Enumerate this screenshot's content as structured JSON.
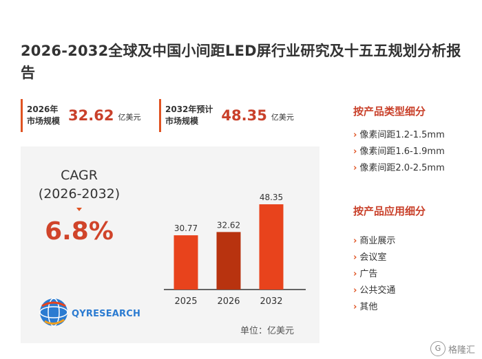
{
  "title": "2026-2032全球及中国小间距LED屏行业研究及十五五规划分析报告",
  "stats": [
    {
      "label_line1": "2026年",
      "label_line2": "市场规模",
      "value": "32.62",
      "unit": "亿美元"
    },
    {
      "label_line1": "2032年预计",
      "label_line2": "市场规模",
      "value": "48.35",
      "unit": "亿美元"
    }
  ],
  "cagr": {
    "label_line1": "CAGR",
    "label_line2": "(2026-2032)",
    "value": "6.8%"
  },
  "logo": {
    "text": "QYRESEARCH"
  },
  "chart_data": {
    "type": "bar",
    "categories": [
      "2025",
      "2026",
      "2032"
    ],
    "values": [
      30.77,
      32.62,
      48.35
    ],
    "data_labels": [
      "30.77",
      "32.62",
      "48.35"
    ],
    "bar_colors": [
      "#e8431c",
      "#b8330f",
      "#e8431c"
    ],
    "unit": "单位：亿美元",
    "ylim": [
      0,
      55
    ],
    "grid": false,
    "legend": "none"
  },
  "sidebar": {
    "sections": [
      {
        "heading": "按产品类型细分",
        "items": [
          "像素间距1.2-1.5mm",
          "像素间距1.6-1.9mm",
          "像素间距2.0-2.5mm"
        ]
      },
      {
        "heading": "按产品应用细分",
        "items": [
          "商业展示",
          "会议室",
          "广告",
          "公共交通",
          "其他"
        ]
      }
    ]
  },
  "watermark": {
    "glyph": "G",
    "text": "格隆汇"
  },
  "colors": {
    "accent": "#e05322",
    "bar": "#e8431c",
    "bar_highlight": "#b8330f",
    "heading": "#c9402a",
    "logo": "#2b7bd1"
  },
  "icons": {
    "logo": "globe-icon",
    "bullet": "chevron-right-icon"
  }
}
